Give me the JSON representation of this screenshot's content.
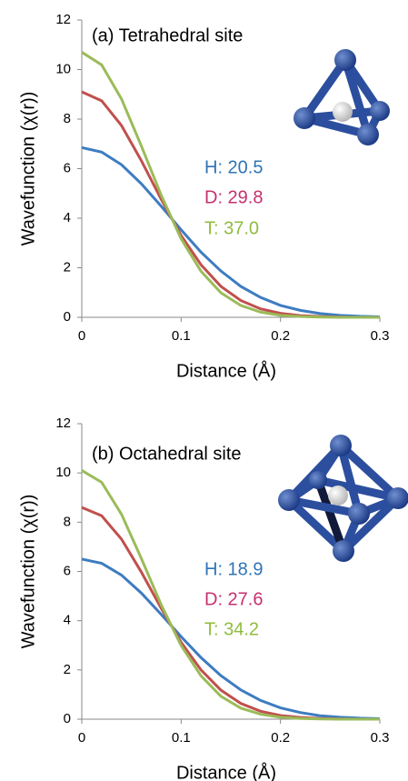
{
  "chart_data": [
    {
      "type": "line",
      "title": "(a) Tetrahedral site",
      "xlabel": "Distance (Å)",
      "ylabel": "Wavefunction (χ(r))",
      "x": [
        0,
        0.02,
        0.04,
        0.06,
        0.08,
        0.1,
        0.12,
        0.14,
        0.16,
        0.18,
        0.2,
        0.22,
        0.24,
        0.26,
        0.28,
        0.3
      ],
      "xlim": [
        0,
        0.3
      ],
      "xticks": [
        0,
        0.1,
        0.2,
        0.3
      ],
      "ylim": [
        0,
        12
      ],
      "yticks": [
        0,
        2,
        4,
        6,
        8,
        10,
        12
      ],
      "series": [
        {
          "name": "H: 20.5",
          "color": "#3d7cc1",
          "label_color": "#2f74b5",
          "values": [
            6.85,
            6.67,
            6.16,
            5.39,
            4.48,
            3.53,
            2.63,
            1.87,
            1.25,
            0.8,
            0.48,
            0.28,
            0.15,
            0.08,
            0.04,
            0.02
          ]
        },
        {
          "name": "D: 29.8",
          "color": "#c0504d",
          "label_color": "#c7306f",
          "values": [
            9.1,
            8.74,
            7.74,
            6.32,
            4.76,
            3.3,
            2.12,
            1.25,
            0.68,
            0.34,
            0.16,
            0.07,
            0.03,
            0.01,
            0,
            0
          ]
        },
        {
          "name": "T: 37.0",
          "color": "#9bbb59",
          "label_color": "#8fbc3f",
          "values": [
            10.7,
            10.19,
            8.81,
            6.91,
            4.92,
            3.17,
            1.86,
            0.99,
            0.48,
            0.21,
            0.08,
            0.03,
            0.01,
            0,
            0,
            0
          ]
        }
      ]
    },
    {
      "type": "line",
      "title": "(b) Octahedral site",
      "xlabel": "Distance (Å)",
      "ylabel": "Wavefunction (χ(r))",
      "x": [
        0,
        0.02,
        0.04,
        0.06,
        0.08,
        0.1,
        0.12,
        0.14,
        0.16,
        0.18,
        0.2,
        0.22,
        0.24,
        0.26,
        0.28,
        0.3
      ],
      "xlim": [
        0,
        0.3
      ],
      "xticks": [
        0,
        0.1,
        0.2,
        0.3
      ],
      "ylim": [
        0,
        12
      ],
      "yticks": [
        0,
        2,
        4,
        6,
        8,
        10,
        12
      ],
      "series": [
        {
          "name": "H: 18.9",
          "color": "#3d7cc1",
          "label_color": "#2f74b5",
          "values": [
            6.5,
            6.33,
            5.85,
            5.12,
            4.25,
            3.35,
            2.5,
            1.77,
            1.19,
            0.76,
            0.46,
            0.27,
            0.14,
            0.08,
            0.04,
            0.02
          ]
        },
        {
          "name": "D: 27.6",
          "color": "#c0504d",
          "label_color": "#c7306f",
          "values": [
            8.6,
            8.26,
            7.31,
            5.97,
            4.5,
            3.12,
            2.0,
            1.18,
            0.64,
            0.32,
            0.15,
            0.07,
            0.03,
            0.01,
            0,
            0
          ]
        },
        {
          "name": "T: 34.2",
          "color": "#9bbb59",
          "label_color": "#8fbc3f",
          "values": [
            10.1,
            9.62,
            8.32,
            6.52,
            4.64,
            2.99,
            1.76,
            0.93,
            0.45,
            0.2,
            0.08,
            0.03,
            0.01,
            0,
            0,
            0
          ]
        }
      ]
    }
  ]
}
